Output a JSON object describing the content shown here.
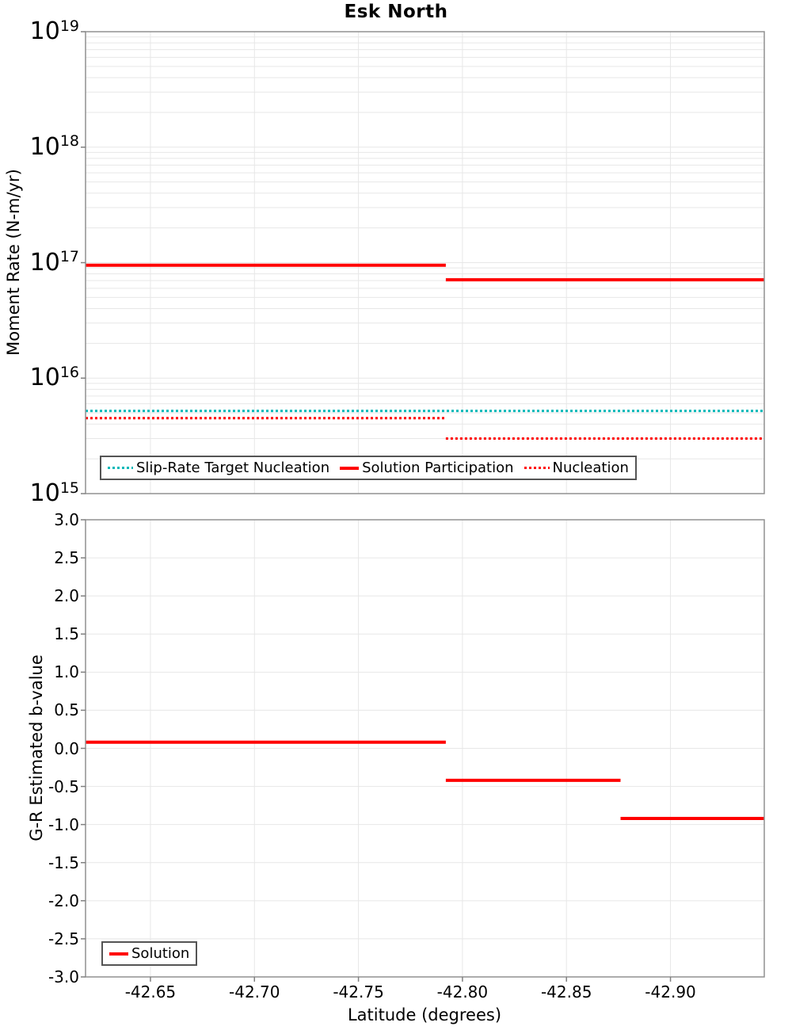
{
  "title": "Esk North",
  "x_axis": {
    "label": "Latitude (degrees)",
    "tick_labels": [
      "-42.65",
      "-42.70",
      "-42.75",
      "-42.80",
      "-42.85",
      "-42.90"
    ]
  },
  "top_plot": {
    "ylabel": "Moment Rate (N-m/yr)",
    "y_tick_base": "10",
    "y_tick_exponents": [
      19,
      18,
      17,
      16,
      15
    ],
    "legend": [
      {
        "label": "Slip-Rate Target Nucleation",
        "style": "dotted",
        "color": "#00b8b8"
      },
      {
        "label": "Solution Participation",
        "style": "solid",
        "color": "#ff0000"
      },
      {
        "label": "Nucleation",
        "style": "dotted",
        "color": "#ff0000"
      }
    ]
  },
  "bottom_plot": {
    "ylabel": "G-R Estimated b-value",
    "y_tick_labels": [
      "3.0",
      "2.5",
      "2.0",
      "1.5",
      "1.0",
      "0.5",
      "0.0",
      "-0.5",
      "-1.0",
      "-1.5",
      "-2.0",
      "-2.5",
      "-3.0"
    ],
    "legend": [
      {
        "label": "Solution",
        "style": "solid",
        "color": "#ff0000"
      }
    ]
  },
  "colors": {
    "solution_red": "#ff0000",
    "target_cyan": "#00b8b8",
    "grid": "#e7e7e7",
    "plot_border": "#919191",
    "tick": "#808080",
    "legend_border": "#545454",
    "background": "#ffffff",
    "text": "#000000"
  },
  "chart_data": [
    {
      "type": "line",
      "title": "Esk North",
      "xlabel": "Latitude (degrees)",
      "ylabel": "Moment Rate (N-m/yr)",
      "y_scale": "log",
      "ylim": [
        1000000000000000.0,
        1e+19
      ],
      "xlim": [
        -42.6188,
        -42.9451
      ],
      "grid": true,
      "legend_position": "inside-bottom-left",
      "series": [
        {
          "name": "Slip-Rate Target Nucleation",
          "color": "#00b8b8",
          "style": "dotted",
          "segments": [
            {
              "x": [
                -42.6188,
                -42.9451
              ],
              "y": 5200000000000000.0
            }
          ]
        },
        {
          "name": "Solution Participation",
          "color": "#ff0000",
          "style": "solid",
          "segments": [
            {
              "x": [
                -42.6188,
                -42.792
              ],
              "y": 9.5e+16
            },
            {
              "x": [
                -42.792,
                -42.9451
              ],
              "y": 7.1e+16
            }
          ]
        },
        {
          "name": "Nucleation",
          "color": "#ff0000",
          "style": "dotted",
          "segments": [
            {
              "x": [
                -42.6188,
                -42.792
              ],
              "y": 4500000000000000.0
            },
            {
              "x": [
                -42.792,
                -42.9451
              ],
              "y": 3000000000000000.0
            }
          ]
        }
      ]
    },
    {
      "type": "line",
      "title": "",
      "xlabel": "Latitude (degrees)",
      "ylabel": "G-R Estimated b-value",
      "y_scale": "linear",
      "ylim": [
        -3.0,
        3.0
      ],
      "xlim": [
        -42.6188,
        -42.9451
      ],
      "grid": true,
      "legend_position": "inside-bottom-left",
      "series": [
        {
          "name": "Solution",
          "color": "#ff0000",
          "style": "solid",
          "segments": [
            {
              "x": [
                -42.6188,
                -42.792
              ],
              "y": 0.08
            },
            {
              "x": [
                -42.792,
                -42.876
              ],
              "y": -0.42
            },
            {
              "x": [
                -42.876,
                -42.9451
              ],
              "y": -0.92
            }
          ]
        }
      ]
    }
  ]
}
